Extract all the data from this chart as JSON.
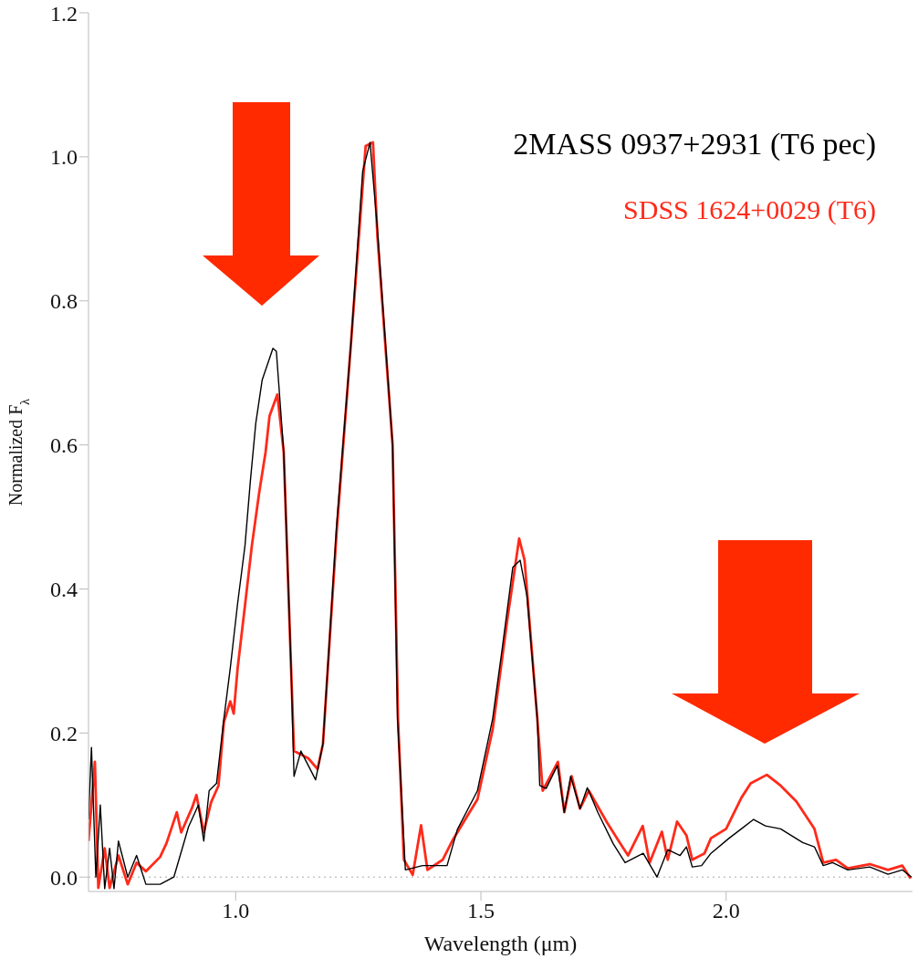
{
  "chart_data": {
    "type": "line",
    "xlabel": "Wavelength (μm)",
    "ylabel": "Normalized F$_{λ}$",
    "xlim": [
      0.7,
      2.38
    ],
    "ylim": [
      -0.02,
      1.2
    ],
    "xticks": [
      {
        "value": 1,
        "label": "1.0"
      },
      {
        "value": 1.5,
        "label": "1.5"
      },
      {
        "value": 2,
        "label": "2.0"
      }
    ],
    "yticks": [
      {
        "value": 0,
        "label": "0.0"
      },
      {
        "value": 0.2,
        "label": "0.2"
      },
      {
        "value": 0.4,
        "label": "0.4"
      },
      {
        "value": 0.6,
        "label": "0.6"
      },
      {
        "value": 0.8,
        "label": "0.8"
      },
      {
        "value": 1,
        "label": "1.0"
      },
      {
        "value": 1.2,
        "label": "1.2"
      }
    ],
    "grid": false,
    "legend": "top right",
    "line_style": "solid",
    "ref_lines": [
      {
        "axis": "y",
        "value": 0,
        "color": "#aaaaaa",
        "line_style": "dotted"
      }
    ],
    "series": [
      {
        "name": "SDSS 1624+0029 (T6)",
        "color": "#ff2a1a",
        "x": [
          0.7,
          0.713,
          0.72,
          0.733,
          0.743,
          0.761,
          0.78,
          0.798,
          0.817,
          0.846,
          0.859,
          0.88,
          0.889,
          0.911,
          0.92,
          0.935,
          0.95,
          0.965,
          0.976,
          0.989,
          0.996,
          1.004,
          1.019,
          1.033,
          1.048,
          1.061,
          1.069,
          1.085,
          1.098,
          1.113,
          1.119,
          1.148,
          1.167,
          1.178,
          1.206,
          1.235,
          1.265,
          1.28,
          1.289,
          1.32,
          1.331,
          1.343,
          1.361,
          1.378,
          1.391,
          1.422,
          1.443,
          1.493,
          1.524,
          1.554,
          1.578,
          1.589,
          1.615,
          1.626,
          1.657,
          1.67,
          1.685,
          1.702,
          1.72,
          1.757,
          1.781,
          1.8,
          1.83,
          1.844,
          1.869,
          1.881,
          1.9,
          1.919,
          1.931,
          1.956,
          1.969,
          2.0,
          2.031,
          2.05,
          2.083,
          2.111,
          2.143,
          2.18,
          2.198,
          2.224,
          2.248,
          2.293,
          2.33,
          2.359,
          2.376
        ],
        "values": [
          0.05,
          0.16,
          -0.015,
          0.04,
          -0.015,
          0.03,
          -0.01,
          0.02,
          0.008,
          0.028,
          0.047,
          0.09,
          0.062,
          0.096,
          0.114,
          0.062,
          0.104,
          0.127,
          0.215,
          0.244,
          0.227,
          0.29,
          0.377,
          0.46,
          0.534,
          0.59,
          0.64,
          0.67,
          0.59,
          0.29,
          0.175,
          0.165,
          0.15,
          0.185,
          0.48,
          0.74,
          1.015,
          1.02,
          0.89,
          0.6,
          0.22,
          0.024,
          0.003,
          0.072,
          0.01,
          0.024,
          0.052,
          0.108,
          0.205,
          0.358,
          0.47,
          0.44,
          0.22,
          0.12,
          0.16,
          0.09,
          0.14,
          0.095,
          0.12,
          0.076,
          0.05,
          0.03,
          0.071,
          0.02,
          0.063,
          0.024,
          0.077,
          0.058,
          0.024,
          0.033,
          0.054,
          0.067,
          0.11,
          0.13,
          0.142,
          0.127,
          0.105,
          0.067,
          0.02,
          0.024,
          0.012,
          0.018,
          0.01,
          0.016,
          -0.002
        ]
      },
      {
        "name": "2MASS 0937+2931 (T6 pec)",
        "color": "#000000",
        "x": [
          0.7,
          0.706,
          0.715,
          0.724,
          0.733,
          0.743,
          0.752,
          0.761,
          0.78,
          0.798,
          0.817,
          0.846,
          0.874,
          0.904,
          0.924,
          0.935,
          0.946,
          0.961,
          0.976,
          0.989,
          1.004,
          1.019,
          1.03,
          1.041,
          1.054,
          1.076,
          1.083,
          1.098,
          1.113,
          1.119,
          1.133,
          1.163,
          1.178,
          1.206,
          1.235,
          1.259,
          1.274,
          1.289,
          1.32,
          1.33,
          1.346,
          1.381,
          1.431,
          1.452,
          1.493,
          1.524,
          1.544,
          1.565,
          1.58,
          1.594,
          1.615,
          1.62,
          1.633,
          1.656,
          1.67,
          1.683,
          1.702,
          1.717,
          1.739,
          1.77,
          1.794,
          1.831,
          1.859,
          1.881,
          1.906,
          1.919,
          1.931,
          1.95,
          1.969,
          2.006,
          2.031,
          2.056,
          2.08,
          2.111,
          2.156,
          2.18,
          2.198,
          2.217,
          2.248,
          2.293,
          2.33,
          2.359,
          2.378
        ],
        "values": [
          0.08,
          0.18,
          0.0,
          0.1,
          -0.016,
          0.04,
          -0.016,
          0.05,
          0.0,
          0.03,
          -0.01,
          -0.01,
          0.0,
          0.07,
          0.1,
          0.05,
          0.12,
          0.13,
          0.22,
          0.29,
          0.38,
          0.46,
          0.55,
          0.63,
          0.69,
          0.734,
          0.73,
          0.59,
          0.29,
          0.14,
          0.175,
          0.135,
          0.185,
          0.49,
          0.74,
          0.98,
          1.02,
          0.9,
          0.6,
          0.22,
          0.01,
          0.016,
          0.016,
          0.066,
          0.12,
          0.22,
          0.32,
          0.43,
          0.44,
          0.39,
          0.22,
          0.127,
          0.123,
          0.155,
          0.09,
          0.14,
          0.095,
          0.124,
          0.089,
          0.046,
          0.02,
          0.033,
          0.0,
          0.038,
          0.03,
          0.042,
          0.014,
          0.016,
          0.033,
          0.054,
          0.067,
          0.08,
          0.071,
          0.067,
          0.048,
          0.042,
          0.016,
          0.02,
          0.01,
          0.014,
          0.004,
          0.01,
          0.0
        ]
      }
    ]
  }
}
